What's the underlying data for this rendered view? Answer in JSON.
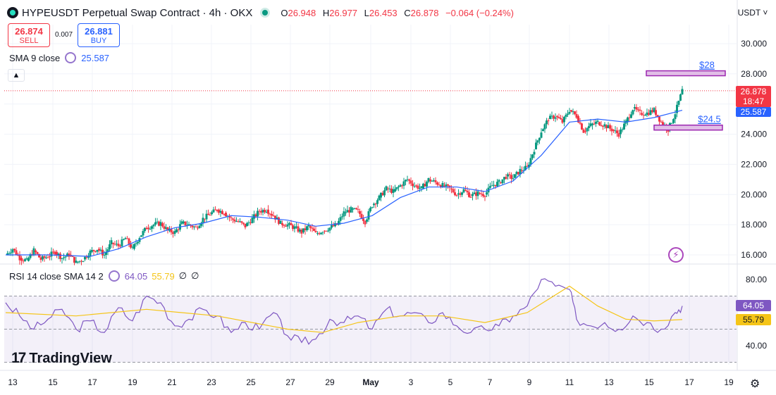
{
  "header": {
    "title": "HYPEUSDT Perpetual Swap Contract · 4h · OKX",
    "ohlc": [
      {
        "k": "O",
        "v": "26.948"
      },
      {
        "k": "H",
        "v": "26.977"
      },
      {
        "k": "L",
        "v": "26.453"
      },
      {
        "k": "C",
        "v": "26.878"
      }
    ],
    "change": "−0.064 (−0.24%)"
  },
  "trade": {
    "sell_price": "26.874",
    "sell_label": "SELL",
    "spread": "0.007",
    "buy_price": "26.881",
    "buy_label": "BUY"
  },
  "sma": {
    "label": "SMA 9 close",
    "value": "25.587"
  },
  "rsi": {
    "label": "RSI 14 close SMA 14 2",
    "value": "64.05",
    "sma_value": "55.79",
    "z1": "∅",
    "z2": "∅"
  },
  "currency": "USDT ˅",
  "price_tag": {
    "price": "26.878",
    "countdown": "18:47"
  },
  "sma_tag": "25.587",
  "rsi_tags": {
    "rsi": "64.05",
    "sma": "55.79"
  },
  "brand": {
    "mark": "17",
    "text": "TradingView"
  },
  "colors": {
    "up": "#089981",
    "down": "#f23645",
    "sma": "#2962ff",
    "rsi": "#7e57c2",
    "rsi_sma": "#f5c518",
    "zone": "#e1bee7",
    "zone_border": "#9c27b0"
  },
  "chart_data": [
    {
      "type": "candlestick",
      "title": "HYPEUSDT Perpetual Swap Contract · 4h · OKX",
      "x_tick_labels": [
        "13",
        "15",
        "17",
        "19",
        "21",
        "23",
        "25",
        "27",
        "29",
        "May",
        "3",
        "5",
        "7",
        "9",
        "11",
        "13",
        "15",
        "17",
        "19"
      ],
      "y_tick_labels": [
        "30.000",
        "28.000",
        "26.000",
        "24.000",
        "22.000",
        "20.000",
        "18.000",
        "16.000"
      ],
      "ylim": [
        15.2,
        30.7
      ],
      "close_path": [
        [
          0,
          16.0
        ],
        [
          10,
          16.4
        ],
        [
          20,
          15.8
        ],
        [
          30,
          15.6
        ],
        [
          40,
          16.3
        ],
        [
          50,
          15.7
        ],
        [
          60,
          15.9
        ],
        [
          70,
          16.2
        ],
        [
          80,
          15.8
        ],
        [
          90,
          16.0
        ],
        [
          100,
          15.5
        ],
        [
          110,
          15.7
        ],
        [
          120,
          16.2
        ],
        [
          130,
          16.4
        ],
        [
          140,
          16.0
        ],
        [
          150,
          16.8
        ],
        [
          160,
          16.6
        ],
        [
          170,
          17.1
        ],
        [
          180,
          16.4
        ],
        [
          190,
          17.2
        ],
        [
          200,
          17.8
        ],
        [
          210,
          18.0
        ],
        [
          220,
          18.1
        ],
        [
          230,
          17.6
        ],
        [
          240,
          17.5
        ],
        [
          250,
          18.1
        ],
        [
          260,
          18.0
        ],
        [
          270,
          17.8
        ],
        [
          280,
          18.4
        ],
        [
          290,
          18.7
        ],
        [
          300,
          19.0
        ],
        [
          310,
          18.8
        ],
        [
          320,
          18.4
        ],
        [
          330,
          18.2
        ],
        [
          340,
          17.9
        ],
        [
          350,
          18.4
        ],
        [
          360,
          18.9
        ],
        [
          370,
          19.0
        ],
        [
          380,
          18.6
        ],
        [
          390,
          18.1
        ],
        [
          400,
          18.0
        ],
        [
          410,
          17.8
        ],
        [
          420,
          17.5
        ],
        [
          430,
          17.9
        ],
        [
          440,
          17.4
        ],
        [
          450,
          17.6
        ],
        [
          460,
          17.8
        ],
        [
          470,
          18.0
        ],
        [
          480,
          18.8
        ],
        [
          490,
          19.0
        ],
        [
          500,
          18.9
        ],
        [
          510,
          18.2
        ],
        [
          520,
          19.3
        ],
        [
          530,
          19.8
        ],
        [
          540,
          20.4
        ],
        [
          550,
          20.2
        ],
        [
          560,
          20.6
        ],
        [
          570,
          21.0
        ],
        [
          580,
          20.6
        ],
        [
          590,
          20.4
        ],
        [
          600,
          21.0
        ],
        [
          610,
          20.8
        ],
        [
          620,
          20.6
        ],
        [
          630,
          20.4
        ],
        [
          640,
          20.0
        ],
        [
          650,
          20.3
        ],
        [
          660,
          19.9
        ],
        [
          670,
          20.1
        ],
        [
          680,
          20.0
        ],
        [
          690,
          20.6
        ],
        [
          700,
          20.8
        ],
        [
          710,
          21.2
        ],
        [
          720,
          21.1
        ],
        [
          730,
          21.6
        ],
        [
          740,
          21.8
        ],
        [
          750,
          23.0
        ],
        [
          760,
          24.2
        ],
        [
          770,
          25.0
        ],
        [
          780,
          25.2
        ],
        [
          790,
          24.8
        ],
        [
          800,
          25.6
        ],
        [
          810,
          25.2
        ],
        [
          820,
          24.2
        ],
        [
          830,
          24.6
        ],
        [
          840,
          24.8
        ],
        [
          850,
          24.6
        ],
        [
          860,
          24.3
        ],
        [
          870,
          24.0
        ],
        [
          880,
          24.8
        ],
        [
          890,
          25.7
        ],
        [
          900,
          25.4
        ],
        [
          910,
          25.4
        ],
        [
          920,
          25.6
        ],
        [
          930,
          24.8
        ],
        [
          940,
          24.3
        ],
        [
          950,
          25.4
        ],
        [
          960,
          26.9
        ]
      ],
      "sma_path": [
        [
          0,
          16.0
        ],
        [
          60,
          16.0
        ],
        [
          120,
          15.9
        ],
        [
          160,
          16.4
        ],
        [
          200,
          17.2
        ],
        [
          240,
          17.8
        ],
        [
          280,
          18.1
        ],
        [
          320,
          18.6
        ],
        [
          360,
          18.5
        ],
        [
          400,
          18.3
        ],
        [
          440,
          17.9
        ],
        [
          480,
          18.1
        ],
        [
          520,
          18.6
        ],
        [
          560,
          19.8
        ],
        [
          600,
          20.5
        ],
        [
          640,
          20.5
        ],
        [
          680,
          20.2
        ],
        [
          720,
          20.9
        ],
        [
          760,
          22.6
        ],
        [
          800,
          24.8
        ],
        [
          840,
          25.0
        ],
        [
          880,
          24.8
        ],
        [
          920,
          25.1
        ],
        [
          960,
          25.587
        ]
      ],
      "annotations": [
        {
          "text": "$28",
          "zone": [
            28.0,
            28.2
          ],
          "x_range": [
            917,
            1029
          ]
        },
        {
          "text": "$24.5",
          "zone": [
            24.4,
            24.6
          ],
          "x_range": [
            928,
            1025
          ]
        }
      ],
      "current_price": 26.878
    },
    {
      "type": "line",
      "title": "RSI 14 close SMA 14 2",
      "y_tick_labels": [
        "80.00",
        "40.00"
      ],
      "ylim": [
        28,
        88
      ],
      "rsi_path": [
        [
          0,
          66
        ],
        [
          20,
          58
        ],
        [
          40,
          50
        ],
        [
          60,
          56
        ],
        [
          80,
          62
        ],
        [
          100,
          50
        ],
        [
          120,
          55
        ],
        [
          140,
          48
        ],
        [
          160,
          63
        ],
        [
          180,
          55
        ],
        [
          200,
          70
        ],
        [
          220,
          66
        ],
        [
          240,
          52
        ],
        [
          260,
          56
        ],
        [
          280,
          62
        ],
        [
          300,
          58
        ],
        [
          320,
          48
        ],
        [
          340,
          54
        ],
        [
          360,
          50
        ],
        [
          380,
          60
        ],
        [
          400,
          46
        ],
        [
          420,
          42
        ],
        [
          440,
          44
        ],
        [
          460,
          56
        ],
        [
          480,
          54
        ],
        [
          500,
          58
        ],
        [
          520,
          50
        ],
        [
          540,
          62
        ],
        [
          560,
          58
        ],
        [
          580,
          60
        ],
        [
          600,
          54
        ],
        [
          620,
          60
        ],
        [
          640,
          52
        ],
        [
          660,
          48
        ],
        [
          680,
          50
        ],
        [
          700,
          52
        ],
        [
          720,
          58
        ],
        [
          740,
          64
        ],
        [
          760,
          80
        ],
        [
          780,
          76
        ],
        [
          800,
          74
        ],
        [
          810,
          56
        ],
        [
          830,
          52
        ],
        [
          850,
          54
        ],
        [
          870,
          50
        ],
        [
          890,
          58
        ],
        [
          910,
          54
        ],
        [
          930,
          50
        ],
        [
          950,
          60
        ],
        [
          960,
          64.05
        ]
      ],
      "rsi_sma_path": [
        [
          0,
          60
        ],
        [
          100,
          58
        ],
        [
          200,
          62
        ],
        [
          300,
          58
        ],
        [
          400,
          50
        ],
        [
          450,
          48
        ],
        [
          500,
          54
        ],
        [
          560,
          58
        ],
        [
          620,
          58
        ],
        [
          680,
          54
        ],
        [
          740,
          60
        ],
        [
          800,
          76
        ],
        [
          840,
          64
        ],
        [
          880,
          56
        ],
        [
          920,
          55
        ],
        [
          960,
          55.79
        ]
      ],
      "bands": [
        70,
        50,
        30
      ]
    }
  ]
}
